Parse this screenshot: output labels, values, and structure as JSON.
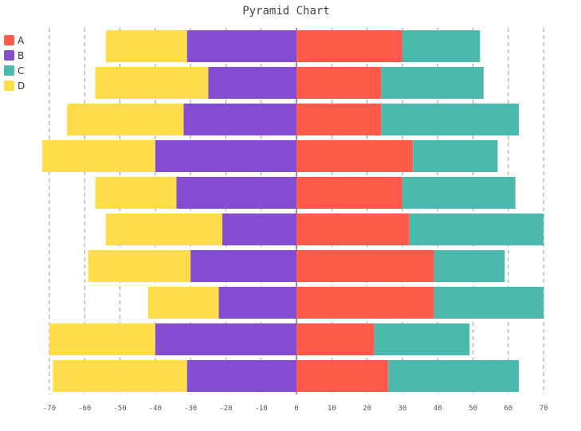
{
  "chart_data": {
    "type": "bar",
    "orientation": "horizontal",
    "stacked": true,
    "title": "Pyramid Chart",
    "xlabel": "",
    "ylabel": "",
    "xlim": [
      -70,
      70
    ],
    "x_ticks": [
      -70,
      -60,
      -50,
      -40,
      -30,
      -20,
      -10,
      0,
      10,
      20,
      30,
      40,
      50,
      60,
      70
    ],
    "grid": "vertical dashed",
    "legend_position": "top-left",
    "rows": 10,
    "series": [
      {
        "name": "A",
        "side": "right",
        "color": "#ff5a4c",
        "values": [
          30,
          24,
          24,
          33,
          30,
          32,
          39,
          39,
          22,
          26
        ]
      },
      {
        "name": "B",
        "side": "left",
        "color": "#844cce",
        "values": [
          -31,
          -25,
          -32,
          -40,
          -34,
          -21,
          -30,
          -22,
          -40,
          -31
        ]
      },
      {
        "name": "C",
        "side": "right",
        "color": "#4bbaad",
        "values": [
          22,
          29,
          39,
          24,
          32,
          38,
          20,
          31,
          27,
          37
        ]
      },
      {
        "name": "D",
        "side": "left",
        "color": "#fddd4a",
        "values": [
          -23,
          -32,
          -33,
          -32,
          -23,
          -33,
          -29,
          -20,
          -30,
          -38
        ]
      }
    ]
  }
}
